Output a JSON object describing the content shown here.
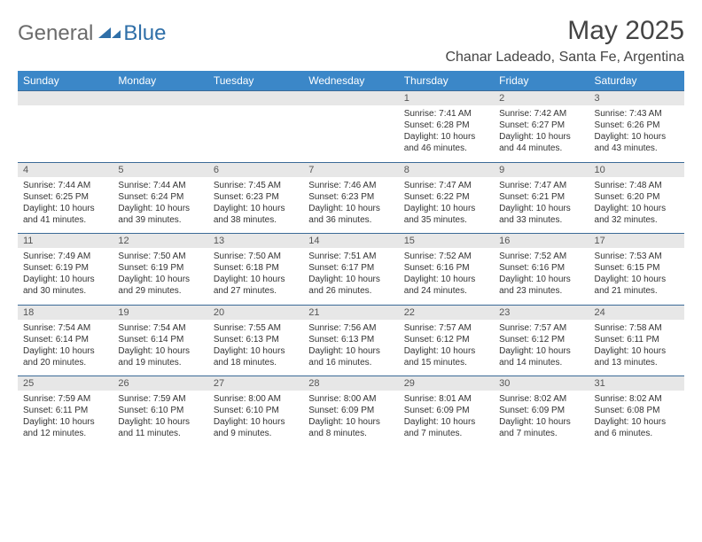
{
  "brand": {
    "general": "General",
    "blue": "Blue"
  },
  "title": "May 2025",
  "location": "Chanar Ladeado, Santa Fe, Argentina",
  "colors": {
    "header_bg": "#3b87c8",
    "header_text": "#ffffff",
    "daynum_bg": "#e7e7e7",
    "row_border": "#3b6a97",
    "body_text": "#333333",
    "title_text": "#444444",
    "logo_gray": "#6b6b6b",
    "logo_blue": "#2f6fa8"
  },
  "day_headers": [
    "Sunday",
    "Monday",
    "Tuesday",
    "Wednesday",
    "Thursday",
    "Friday",
    "Saturday"
  ],
  "weeks": [
    [
      null,
      null,
      null,
      null,
      {
        "n": "1",
        "sr": "Sunrise: 7:41 AM",
        "ss": "Sunset: 6:28 PM",
        "dl": "Daylight: 10 hours and 46 minutes."
      },
      {
        "n": "2",
        "sr": "Sunrise: 7:42 AM",
        "ss": "Sunset: 6:27 PM",
        "dl": "Daylight: 10 hours and 44 minutes."
      },
      {
        "n": "3",
        "sr": "Sunrise: 7:43 AM",
        "ss": "Sunset: 6:26 PM",
        "dl": "Daylight: 10 hours and 43 minutes."
      }
    ],
    [
      {
        "n": "4",
        "sr": "Sunrise: 7:44 AM",
        "ss": "Sunset: 6:25 PM",
        "dl": "Daylight: 10 hours and 41 minutes."
      },
      {
        "n": "5",
        "sr": "Sunrise: 7:44 AM",
        "ss": "Sunset: 6:24 PM",
        "dl": "Daylight: 10 hours and 39 minutes."
      },
      {
        "n": "6",
        "sr": "Sunrise: 7:45 AM",
        "ss": "Sunset: 6:23 PM",
        "dl": "Daylight: 10 hours and 38 minutes."
      },
      {
        "n": "7",
        "sr": "Sunrise: 7:46 AM",
        "ss": "Sunset: 6:23 PM",
        "dl": "Daylight: 10 hours and 36 minutes."
      },
      {
        "n": "8",
        "sr": "Sunrise: 7:47 AM",
        "ss": "Sunset: 6:22 PM",
        "dl": "Daylight: 10 hours and 35 minutes."
      },
      {
        "n": "9",
        "sr": "Sunrise: 7:47 AM",
        "ss": "Sunset: 6:21 PM",
        "dl": "Daylight: 10 hours and 33 minutes."
      },
      {
        "n": "10",
        "sr": "Sunrise: 7:48 AM",
        "ss": "Sunset: 6:20 PM",
        "dl": "Daylight: 10 hours and 32 minutes."
      }
    ],
    [
      {
        "n": "11",
        "sr": "Sunrise: 7:49 AM",
        "ss": "Sunset: 6:19 PM",
        "dl": "Daylight: 10 hours and 30 minutes."
      },
      {
        "n": "12",
        "sr": "Sunrise: 7:50 AM",
        "ss": "Sunset: 6:19 PM",
        "dl": "Daylight: 10 hours and 29 minutes."
      },
      {
        "n": "13",
        "sr": "Sunrise: 7:50 AM",
        "ss": "Sunset: 6:18 PM",
        "dl": "Daylight: 10 hours and 27 minutes."
      },
      {
        "n": "14",
        "sr": "Sunrise: 7:51 AM",
        "ss": "Sunset: 6:17 PM",
        "dl": "Daylight: 10 hours and 26 minutes."
      },
      {
        "n": "15",
        "sr": "Sunrise: 7:52 AM",
        "ss": "Sunset: 6:16 PM",
        "dl": "Daylight: 10 hours and 24 minutes."
      },
      {
        "n": "16",
        "sr": "Sunrise: 7:52 AM",
        "ss": "Sunset: 6:16 PM",
        "dl": "Daylight: 10 hours and 23 minutes."
      },
      {
        "n": "17",
        "sr": "Sunrise: 7:53 AM",
        "ss": "Sunset: 6:15 PM",
        "dl": "Daylight: 10 hours and 21 minutes."
      }
    ],
    [
      {
        "n": "18",
        "sr": "Sunrise: 7:54 AM",
        "ss": "Sunset: 6:14 PM",
        "dl": "Daylight: 10 hours and 20 minutes."
      },
      {
        "n": "19",
        "sr": "Sunrise: 7:54 AM",
        "ss": "Sunset: 6:14 PM",
        "dl": "Daylight: 10 hours and 19 minutes."
      },
      {
        "n": "20",
        "sr": "Sunrise: 7:55 AM",
        "ss": "Sunset: 6:13 PM",
        "dl": "Daylight: 10 hours and 18 minutes."
      },
      {
        "n": "21",
        "sr": "Sunrise: 7:56 AM",
        "ss": "Sunset: 6:13 PM",
        "dl": "Daylight: 10 hours and 16 minutes."
      },
      {
        "n": "22",
        "sr": "Sunrise: 7:57 AM",
        "ss": "Sunset: 6:12 PM",
        "dl": "Daylight: 10 hours and 15 minutes."
      },
      {
        "n": "23",
        "sr": "Sunrise: 7:57 AM",
        "ss": "Sunset: 6:12 PM",
        "dl": "Daylight: 10 hours and 14 minutes."
      },
      {
        "n": "24",
        "sr": "Sunrise: 7:58 AM",
        "ss": "Sunset: 6:11 PM",
        "dl": "Daylight: 10 hours and 13 minutes."
      }
    ],
    [
      {
        "n": "25",
        "sr": "Sunrise: 7:59 AM",
        "ss": "Sunset: 6:11 PM",
        "dl": "Daylight: 10 hours and 12 minutes."
      },
      {
        "n": "26",
        "sr": "Sunrise: 7:59 AM",
        "ss": "Sunset: 6:10 PM",
        "dl": "Daylight: 10 hours and 11 minutes."
      },
      {
        "n": "27",
        "sr": "Sunrise: 8:00 AM",
        "ss": "Sunset: 6:10 PM",
        "dl": "Daylight: 10 hours and 9 minutes."
      },
      {
        "n": "28",
        "sr": "Sunrise: 8:00 AM",
        "ss": "Sunset: 6:09 PM",
        "dl": "Daylight: 10 hours and 8 minutes."
      },
      {
        "n": "29",
        "sr": "Sunrise: 8:01 AM",
        "ss": "Sunset: 6:09 PM",
        "dl": "Daylight: 10 hours and 7 minutes."
      },
      {
        "n": "30",
        "sr": "Sunrise: 8:02 AM",
        "ss": "Sunset: 6:09 PM",
        "dl": "Daylight: 10 hours and 7 minutes."
      },
      {
        "n": "31",
        "sr": "Sunrise: 8:02 AM",
        "ss": "Sunset: 6:08 PM",
        "dl": "Daylight: 10 hours and 6 minutes."
      }
    ]
  ]
}
